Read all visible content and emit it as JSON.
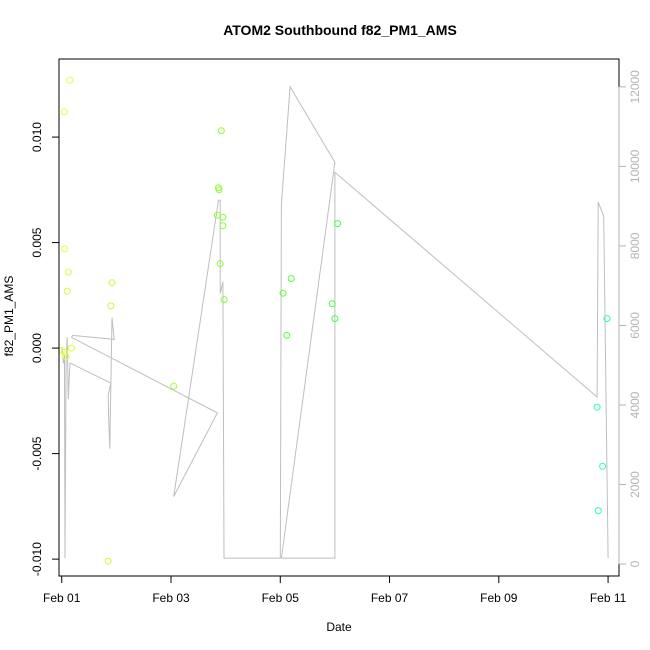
{
  "chart_data": {
    "type": "scatter",
    "title": "ATOM2 Southbound f82_PM1_AMS",
    "xlabel": "Date",
    "ylabel": "f82_PM1_AMS",
    "xlim": [
      -0.05,
      10.2
    ],
    "ylim": [
      -0.0108,
      0.0137
    ],
    "y2lim": [
      -300,
      12700
    ],
    "x_ticks": [
      0,
      2,
      4,
      6,
      8,
      10
    ],
    "x_tick_labels": [
      "Feb 01",
      "Feb 03",
      "Feb 05",
      "Feb 07",
      "Feb 09",
      "Feb 11"
    ],
    "y_ticks": [
      -0.01,
      -0.005,
      0.0,
      0.005,
      0.01
    ],
    "y_tick_labels": [
      "-0.010",
      "-0.005",
      "0.000",
      "0.005",
      "0.010"
    ],
    "y2_ticks": [
      0,
      2000,
      4000,
      6000,
      8000,
      10000,
      12000
    ],
    "y2_tick_labels": [
      "0",
      "2000",
      "4000",
      "6000",
      "8000",
      "10000",
      "12000"
    ],
    "grid": false,
    "points": {
      "x": [
        0.0,
        0.05,
        0.05,
        0.05,
        0.08,
        0.1,
        0.12,
        0.15,
        0.18,
        0.85,
        0.9,
        0.92,
        2.05,
        2.85,
        2.87,
        2.88,
        2.9,
        2.92,
        2.95,
        2.95,
        2.97,
        4.05,
        4.12,
        4.2,
        4.95,
        5.0,
        5.05,
        9.8,
        9.82,
        9.9,
        9.98
      ],
      "y": [
        -0.0001,
        0.0112,
        0.0047,
        -0.0002,
        -0.0004,
        0.0027,
        0.0036,
        0.0127,
        0.0,
        -0.0101,
        0.002,
        0.0031,
        -0.0018,
        0.0063,
        0.0076,
        0.0075,
        0.004,
        0.0103,
        0.0062,
        0.0058,
        0.0023,
        0.0026,
        0.0006,
        0.0033,
        0.0021,
        0.0014,
        0.0059,
        -0.0028,
        -0.0077,
        -0.0056,
        0.0014
      ]
    },
    "point_colors": [
      "#e8ff3c",
      "#e8ff3c",
      "#e8ff3c",
      "#e8ff3c",
      "#e8ff3c",
      "#d9ff38",
      "#d9ff38",
      "#e8ff3c",
      "#d9ff38",
      "#c9ff34",
      "#c2ff34",
      "#c2ff34",
      "#a6ff30",
      "#8cff2c",
      "#8cff2c",
      "#8cff2c",
      "#86ff2c",
      "#86ff2c",
      "#86ff2c",
      "#86ff2c",
      "#86ff2c",
      "#5cff3c",
      "#56ff3c",
      "#56ff3c",
      "#44ff4a",
      "#44ff4a",
      "#44ff4a",
      "#2affae",
      "#2affae",
      "#2affb0",
      "#2affb8"
    ],
    "line_series": {
      "color": "#bebebe",
      "x": [
        0.0,
        0.02,
        0.03,
        0.05,
        0.06,
        0.08,
        0.1,
        0.12,
        0.15,
        0.16,
        0.9,
        0.85,
        0.86,
        0.88,
        0.92,
        0.96,
        0.2,
        0.18,
        2.85,
        2.05,
        2.87,
        2.9,
        2.9,
        2.95,
        2.97,
        2.97,
        4.0,
        4.02,
        4.18,
        5.0,
        4.02,
        4.04,
        5.0,
        5.0,
        9.8,
        9.82,
        9.92,
        10.0
      ],
      "y": [
        5450,
        5300,
        5050,
        5250,
        150,
        5100,
        5700,
        4150,
        5050,
        5050,
        4550,
        4250,
        3650,
        2900,
        6200,
        5650,
        5750,
        5700,
        3800,
        1700,
        9150,
        9150,
        6800,
        7100,
        150,
        150,
        150,
        9050,
        12000,
        10100,
        150,
        150,
        150,
        9850,
        4200,
        9100,
        8750,
        150
      ]
    }
  }
}
